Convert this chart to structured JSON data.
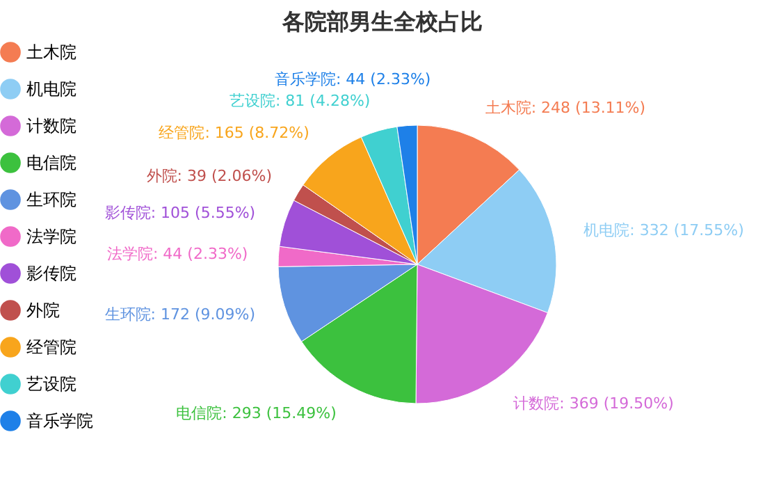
{
  "chart_data": {
    "type": "pie",
    "title": "各院部男生全校占比",
    "categories": [
      "土木院",
      "机电院",
      "计数院",
      "电信院",
      "生环院",
      "法学院",
      "影传院",
      "外院",
      "经管院",
      "艺设院",
      "音乐学院"
    ],
    "values": [
      248,
      332,
      369,
      293,
      172,
      44,
      105,
      39,
      165,
      81,
      44
    ],
    "colors": [
      "#f47c52",
      "#8ecdf4",
      "#d46ad8",
      "#3cc13e",
      "#5f93e0",
      "#f06ac8",
      "#a050d8",
      "#c0504d",
      "#f8a51c",
      "#40d0d0",
      "#1e80e8"
    ],
    "value_labels": [
      "土木院: 248 (13.11%)",
      "机电院: 332 (17.55%)",
      "计数院: 369 (19.50%)",
      "电信院: 293 (15.49%)",
      "生环院: 172 (9.09%)",
      "法学院: 44 (2.33%)",
      "影传院: 105 (5.55%)",
      "外院: 39 (2.06%)",
      "经管院: 165 (8.72%)",
      "艺设院: 81 (4.28%)",
      "音乐学院: 44 (2.33%)"
    ],
    "legend": "left"
  }
}
